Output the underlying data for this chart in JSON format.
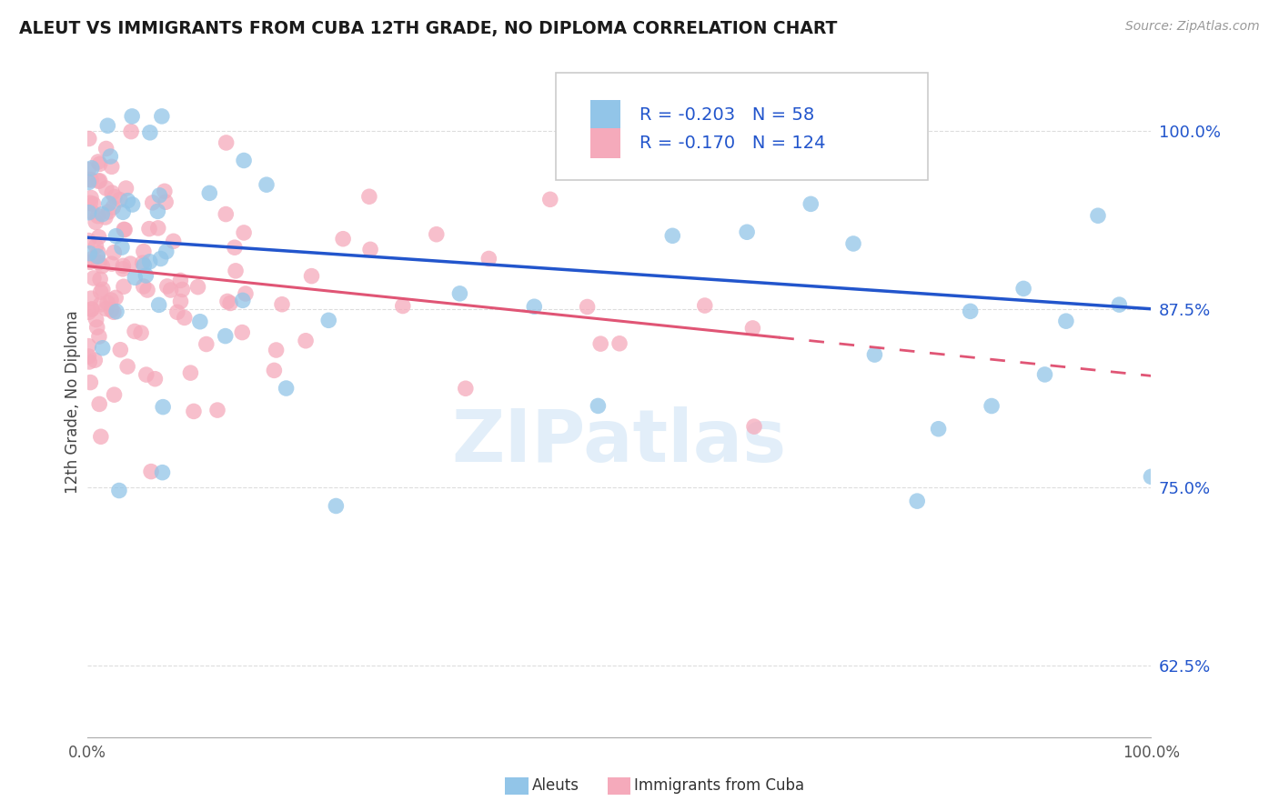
{
  "title": "ALEUT VS IMMIGRANTS FROM CUBA 12TH GRADE, NO DIPLOMA CORRELATION CHART",
  "source_text": "Source: ZipAtlas.com",
  "ylabel": "12th Grade, No Diploma",
  "y_tick_labels": [
    "62.5%",
    "75.0%",
    "87.5%",
    "100.0%"
  ],
  "y_tick_values": [
    0.625,
    0.75,
    0.875,
    1.0
  ],
  "x_range": [
    0.0,
    1.0
  ],
  "y_range": [
    0.575,
    1.045
  ],
  "legend_label1": "Aleuts",
  "legend_label2": "Immigrants from Cuba",
  "legend_R1": "-0.203",
  "legend_N1": "58",
  "legend_R2": "-0.170",
  "legend_N2": "124",
  "aleut_color": "#92C5E8",
  "cuba_color": "#F5AABB",
  "aleut_line_color": "#2255CC",
  "cuba_line_color": "#E05575",
  "background_color": "#FFFFFF",
  "watermark_text": "ZIPatlas",
  "aleut_line_start_y": 0.925,
  "aleut_line_end_y": 0.875,
  "cuba_line_start_y": 0.905,
  "cuba_line_solid_end_x": 0.65,
  "cuba_line_solid_end_y": 0.855,
  "cuba_line_dashed_end_y": 0.835
}
